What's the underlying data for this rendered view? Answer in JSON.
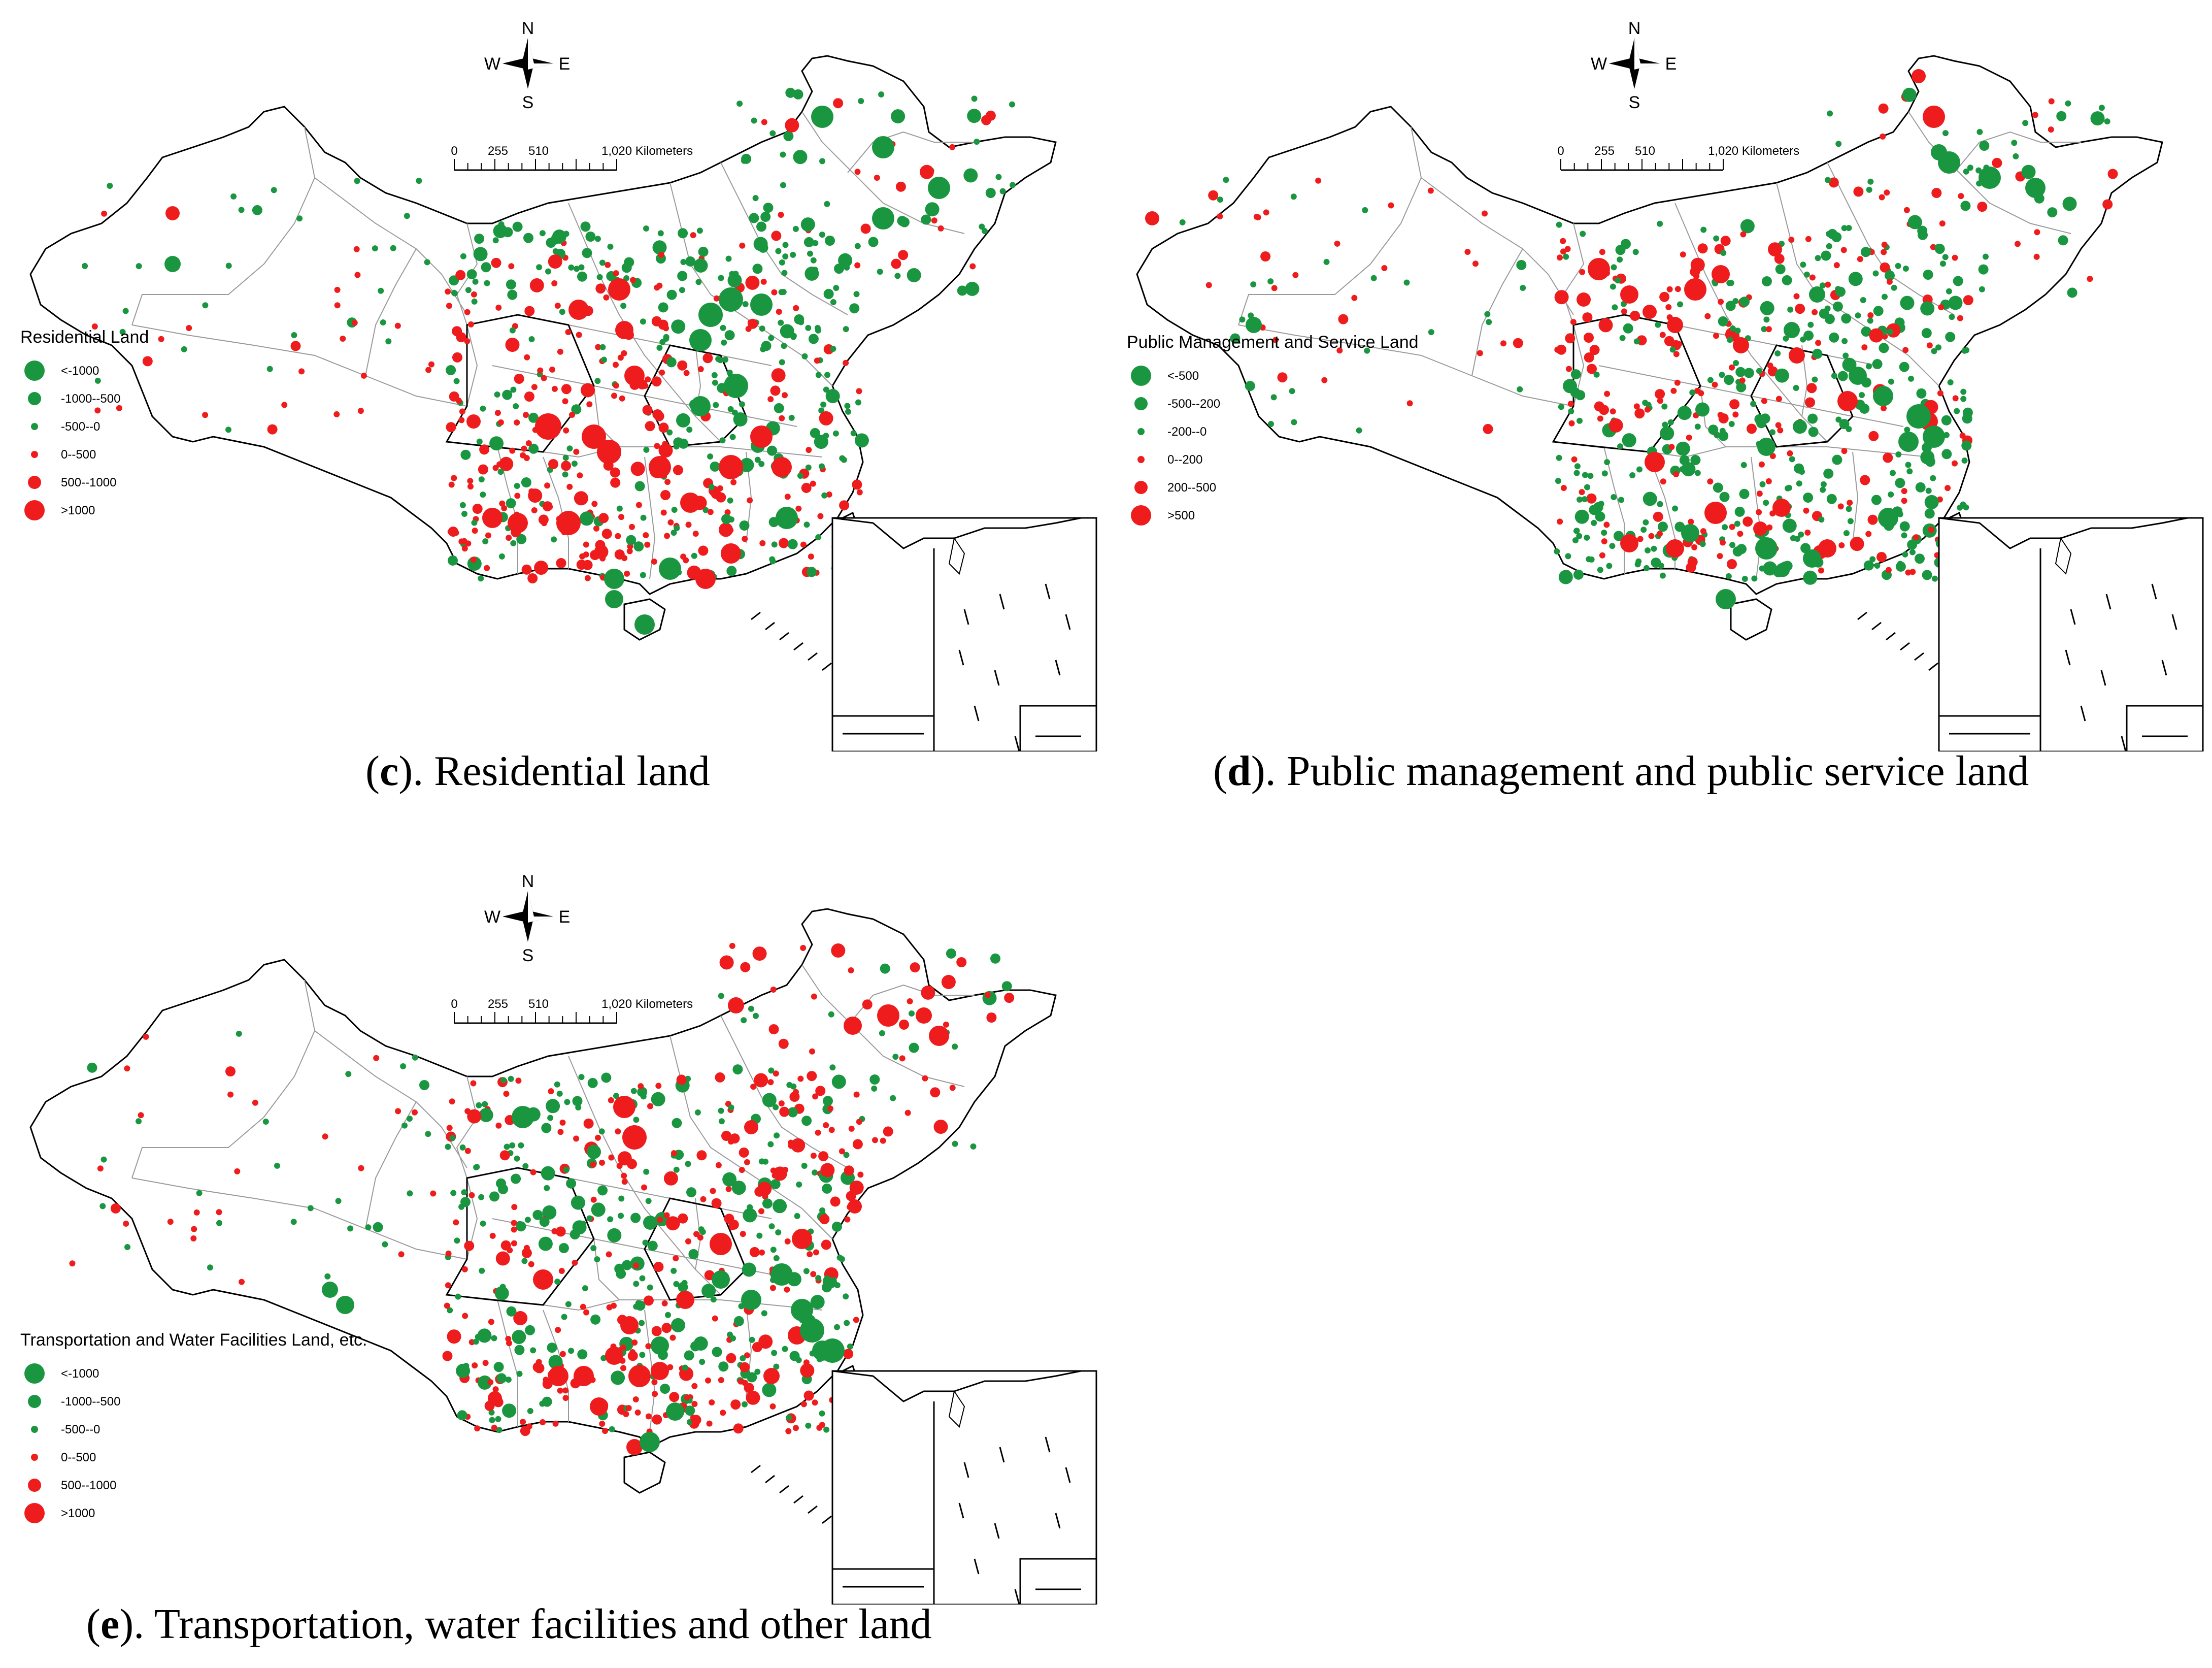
{
  "compass": {
    "n": "N",
    "s": "S",
    "w": "W",
    "e": "E"
  },
  "scale": {
    "ticks": [
      "0",
      "255",
      "510",
      "1,020 Kilometers"
    ]
  },
  "colors": {
    "negative": "#1a9641",
    "positive": "#ee1c1c",
    "boundary": "#000000",
    "province": "#9a9a9a"
  },
  "panels": [
    {
      "id": "c",
      "caption_letter": "c",
      "caption_text": "). Residential land",
      "legend_title": "Residential Land",
      "legend": [
        "<-1000",
        "-1000--500",
        "-500--0",
        "0--500",
        "500--1000",
        ">1000"
      ]
    },
    {
      "id": "d",
      "caption_letter": "d",
      "caption_text": "). Public management and public service land",
      "legend_title": "Public Management and Service Land",
      "legend": [
        "<-500",
        "-500--200",
        "-200--0",
        "0--200",
        "200--500",
        ">500"
      ]
    },
    {
      "id": "e",
      "caption_letter": "e",
      "caption_text": "). Transportation, water facilities and other land",
      "legend_title": "Transportation and Water Facilities Land, etc.",
      "legend": [
        "<-1000",
        "-1000--500",
        "-500--0",
        "0--500",
        "500--1000",
        ">1000"
      ]
    }
  ]
}
